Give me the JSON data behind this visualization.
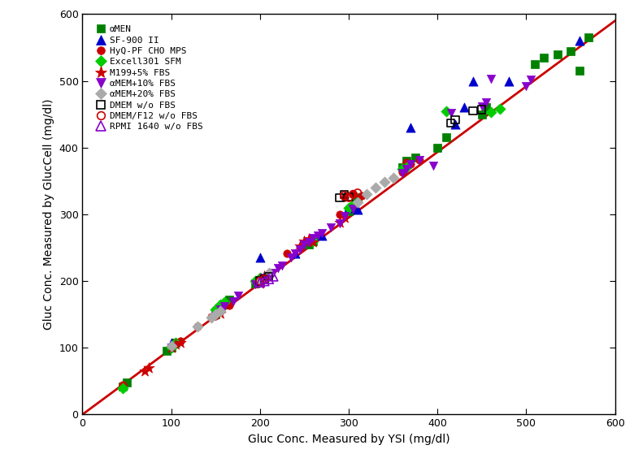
{
  "xlabel": "Gluc Conc. Measured by YSI (mg/dl)",
  "ylabel": "Gluc Conc. Measured by GlucCell (mg/dl)",
  "xlim": [
    0,
    600
  ],
  "ylim": [
    0,
    600
  ],
  "xticks": [
    0,
    100,
    200,
    300,
    400,
    500,
    600
  ],
  "yticks": [
    0,
    100,
    200,
    300,
    400,
    500,
    600
  ],
  "fit_line": {
    "x0": 0,
    "y0": 0,
    "x1": 600,
    "y1": 590
  },
  "series": [
    {
      "label": "αMEN",
      "color": "#008000",
      "marker": "s",
      "filled": true,
      "x": [
        45,
        50,
        95,
        100,
        105,
        150,
        155,
        160,
        165,
        195,
        200,
        255,
        260,
        300,
        305,
        310,
        360,
        365,
        375,
        400,
        410,
        450,
        455,
        510,
        520,
        535,
        550,
        560,
        570
      ],
      "y": [
        42,
        48,
        95,
        100,
        107,
        150,
        160,
        165,
        172,
        197,
        200,
        255,
        260,
        305,
        310,
        325,
        370,
        380,
        385,
        400,
        415,
        450,
        460,
        525,
        535,
        540,
        545,
        515,
        565
      ]
    },
    {
      "label": "SF-900 II",
      "color": "#0000cc",
      "marker": "^",
      "filled": true,
      "x": [
        100,
        200,
        240,
        270,
        300,
        310,
        370,
        420,
        430,
        440,
        480,
        560
      ],
      "y": [
        108,
        235,
        242,
        268,
        310,
        307,
        430,
        435,
        460,
        500,
        500,
        560
      ]
    },
    {
      "label": "HyQ-PF CHO MPS",
      "color": "#cc0000",
      "marker": "o",
      "filled": true,
      "x": [
        45,
        100,
        105,
        110,
        130,
        145,
        150,
        155,
        165,
        200,
        230,
        245,
        290,
        295,
        305,
        315,
        360,
        365,
        370,
        380
      ],
      "y": [
        44,
        100,
        107,
        110,
        132,
        147,
        148,
        157,
        163,
        200,
        242,
        250,
        300,
        325,
        330,
        328,
        363,
        378,
        375,
        382
      ]
    },
    {
      "label": "Excell301 SFM",
      "color": "#00cc00",
      "marker": "D",
      "filled": true,
      "x": [
        45,
        100,
        105,
        150,
        155,
        160,
        195,
        200,
        260,
        300,
        305,
        360,
        365,
        410,
        460,
        470
      ],
      "y": [
        40,
        100,
        107,
        158,
        165,
        168,
        200,
        205,
        260,
        310,
        315,
        368,
        370,
        455,
        453,
        458
      ]
    },
    {
      "label": "M199+5% FBS",
      "color": "#cc0000",
      "marker": "*",
      "filled": true,
      "x": [
        70,
        75,
        100,
        105,
        110,
        155,
        200,
        205,
        245,
        250,
        255,
        260,
        290,
        295
      ],
      "y": [
        65,
        70,
        100,
        105,
        107,
        152,
        197,
        207,
        252,
        260,
        263,
        258,
        288,
        295
      ]
    },
    {
      "label": "αMEM+10% FBS",
      "color": "#8800cc",
      "marker": "v",
      "filled": true,
      "x": [
        100,
        150,
        155,
        160,
        170,
        175,
        195,
        200,
        205,
        215,
        220,
        225,
        235,
        240,
        245,
        250,
        255,
        260,
        265,
        270,
        280,
        290,
        295,
        305,
        360,
        365,
        370,
        380,
        395,
        415,
        450,
        455,
        460,
        500,
        505
      ],
      "y": [
        100,
        148,
        157,
        162,
        170,
        178,
        195,
        200,
        205,
        212,
        220,
        223,
        235,
        242,
        248,
        255,
        258,
        265,
        268,
        272,
        280,
        287,
        297,
        308,
        362,
        368,
        375,
        382,
        373,
        452,
        462,
        468,
        503,
        492,
        502
      ]
    },
    {
      "label": "αMEM+20% FBS",
      "color": "#aaaaaa",
      "marker": "D",
      "filled": true,
      "x": [
        100,
        130,
        145,
        150,
        155,
        200,
        210,
        310,
        320,
        330,
        340,
        350
      ],
      "y": [
        103,
        132,
        145,
        150,
        155,
        200,
        212,
        318,
        330,
        340,
        348,
        355
      ]
    },
    {
      "label": "DMEM w/o FBS",
      "color": "#000000",
      "marker": "s",
      "filled": false,
      "x": [
        200,
        205,
        210,
        290,
        295,
        300,
        415,
        420,
        440,
        450
      ],
      "y": [
        200,
        203,
        207,
        325,
        330,
        326,
        437,
        442,
        455,
        457
      ]
    },
    {
      "label": "DMEM/F12 w/o FBS",
      "color": "#cc0000",
      "marker": "o",
      "filled": false,
      "x": [
        200,
        205,
        295,
        300,
        305,
        310
      ],
      "y": [
        200,
        203,
        328,
        325,
        330,
        332
      ]
    },
    {
      "label": "RPMI 1640 w/o FBS",
      "color": "#8800cc",
      "marker": "^",
      "filled": false,
      "x": [
        200,
        205,
        210,
        215
      ],
      "y": [
        198,
        200,
        203,
        207
      ]
    }
  ]
}
